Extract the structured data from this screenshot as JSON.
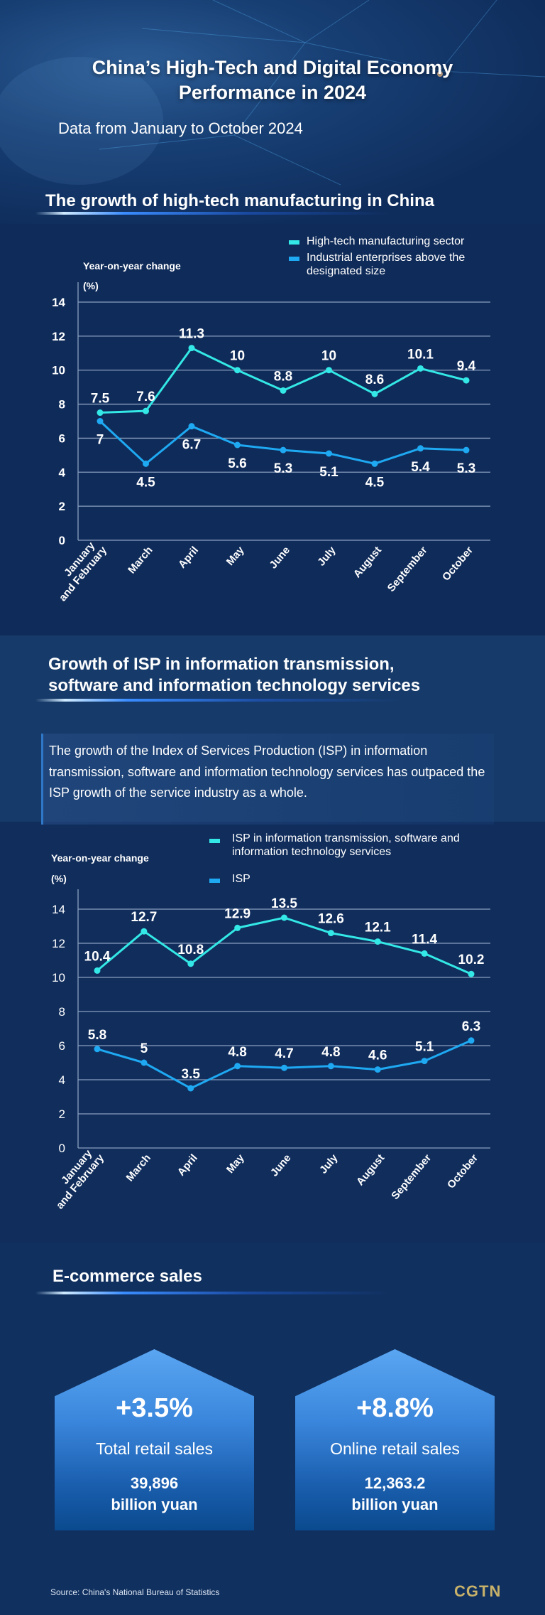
{
  "header": {
    "title_line1": "China’s High-Tech and Digital Economy",
    "title_line2": "Performance in 2024",
    "subtitle": "Data from January to October 2024"
  },
  "section1": {
    "heading": "The growth of high-tech manufacturing in China"
  },
  "section2": {
    "heading_line1": "Growth of ISP in information transmission,",
    "heading_line2": "software and information technology services",
    "note": "The growth of the Index of Services Production (ISP) in information transmission, software and information technology services has outpaced the ISP growth of the service industry as a whole."
  },
  "section3": {
    "heading": "E-commerce sales",
    "cards": [
      {
        "percent": "+3.5%",
        "label": "Total retail sales",
        "value": "39,896",
        "unit": "billion yuan"
      },
      {
        "percent": "+8.8%",
        "label": "Online retail sales",
        "value": "12,363.2",
        "unit": "billion yuan"
      }
    ]
  },
  "footer": {
    "source": "Source: China's National Bureau of Statistics",
    "logo": "CGTN"
  },
  "colors": {
    "series_light": "#33e8e6",
    "series_blue": "#1ea9f2",
    "background": "#0f2b58",
    "logo": "#c8b26a"
  },
  "chart_data": [
    {
      "type": "line",
      "ylabel": "Year-on-year change",
      "yunit": "(%)",
      "ylim": [
        0,
        14
      ],
      "yticks": [
        0,
        2,
        4,
        6,
        8,
        10,
        12,
        14
      ],
      "grid": true,
      "legend": "top-right",
      "categories": [
        "January and February",
        "March",
        "April",
        "May",
        "June",
        "July",
        "August",
        "September",
        "October"
      ],
      "series": [
        {
          "name": "High-tech manufacturing sector",
          "values": [
            7.5,
            7.6,
            11.3,
            10,
            8.8,
            10,
            8.6,
            10.1,
            9.4
          ]
        },
        {
          "name": "Industrial enterprises above the designated size",
          "values": [
            7,
            4.5,
            6.7,
            5.6,
            5.3,
            5.1,
            4.5,
            5.4,
            5.3
          ]
        }
      ]
    },
    {
      "type": "line",
      "ylabel": "Year-on-year change",
      "yunit": "(%)",
      "ylim": [
        0,
        14
      ],
      "yticks": [
        0,
        2,
        4,
        6,
        8,
        10,
        12,
        14
      ],
      "grid": true,
      "legend": "top-right",
      "categories": [
        "January and February",
        "March",
        "April",
        "May",
        "June",
        "July",
        "August",
        "September",
        "October"
      ],
      "series": [
        {
          "name": "ISP in information transmission, software and information technology services",
          "values": [
            10.4,
            12.7,
            10.8,
            12.9,
            13.5,
            12.6,
            12.1,
            11.4,
            10.2
          ]
        },
        {
          "name": "ISP",
          "values": [
            5.8,
            5,
            3.5,
            4.8,
            4.7,
            4.8,
            4.6,
            5.1,
            6.3
          ]
        }
      ]
    }
  ]
}
